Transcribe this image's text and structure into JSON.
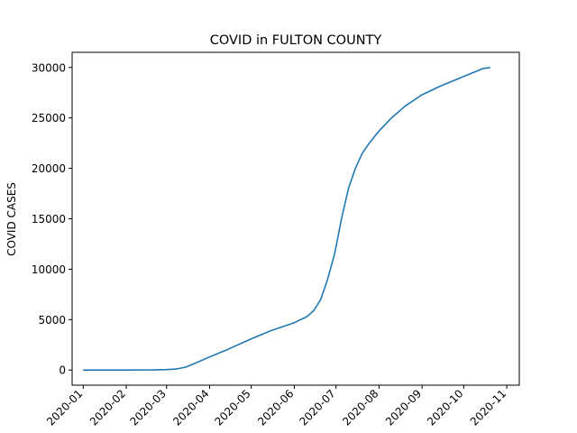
{
  "chart_data": {
    "type": "line",
    "title": "COVID in FULTON COUNTY",
    "xlabel": "",
    "ylabel": "COVID CASES",
    "x_ticks": [
      "2020-01",
      "2020-02",
      "2020-03",
      "2020-04",
      "2020-05",
      "2020-06",
      "2020-07",
      "2020-08",
      "2020-09",
      "2020-10",
      "2020-11"
    ],
    "y_ticks": [
      0,
      5000,
      10000,
      15000,
      20000,
      25000,
      30000
    ],
    "xlim": [
      "2019-12-24",
      "2020-11-10"
    ],
    "ylim": [
      -1500,
      31500
    ],
    "grid": false,
    "line_color": "#1f77b4",
    "series": [
      {
        "x": [
          "2020-01-01",
          "2020-02-01",
          "2020-02-20",
          "2020-03-01",
          "2020-03-08",
          "2020-03-15",
          "2020-03-22",
          "2020-04-01",
          "2020-04-15",
          "2020-05-01",
          "2020-05-15",
          "2020-06-01",
          "2020-06-10",
          "2020-06-15",
          "2020-06-20",
          "2020-06-25",
          "2020-06-30",
          "2020-07-05",
          "2020-07-10",
          "2020-07-15",
          "2020-07-20",
          "2020-07-25",
          "2020-08-01",
          "2020-08-10",
          "2020-08-20",
          "2020-09-01",
          "2020-09-15",
          "2020-10-01",
          "2020-10-15",
          "2020-10-20"
        ],
        "y": [
          0,
          0,
          10,
          50,
          100,
          300,
          700,
          1300,
          2100,
          3100,
          3900,
          4700,
          5300,
          5900,
          7000,
          9000,
          11500,
          15000,
          18000,
          20000,
          21500,
          22500,
          23700,
          25000,
          26200,
          27300,
          28200,
          29100,
          29900,
          30000
        ]
      }
    ]
  }
}
